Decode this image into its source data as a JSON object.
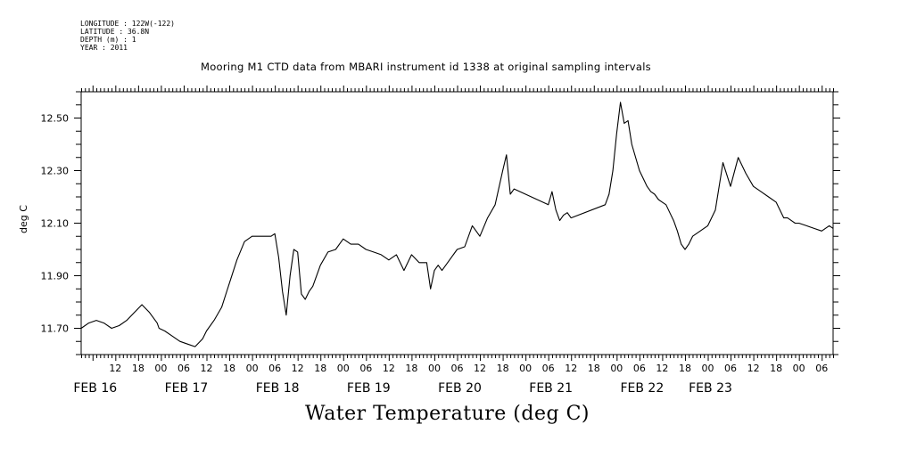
{
  "meta": {
    "longitude": "LONGITUDE : 122W(-122)",
    "latitude": "LATITUDE : 36.8N",
    "depth": "DEPTH (m) : 1",
    "year": "YEAR : 2011"
  },
  "chart_data": {
    "type": "line",
    "title": "Mooring M1 CTD data from MBARI instrument id 1338 at original sampling intervals",
    "xlabel": "Water Temperature (deg C)",
    "ylabel": "deg C",
    "ylim": [
      11.6,
      12.6
    ],
    "yticks": [
      11.7,
      11.9,
      12.1,
      12.3,
      12.5
    ],
    "ytick_labels": [
      "11.70",
      "11.90",
      "12.10",
      "12.30",
      "12.50"
    ],
    "xlim": [
      -15,
      183
    ],
    "hour_ticks": [
      {
        "t": -6,
        "label": "12"
      },
      {
        "t": 0,
        "label": "18"
      },
      {
        "t": 6,
        "label": "00"
      },
      {
        "t": 12,
        "label": "06"
      },
      {
        "t": 18,
        "label": "12"
      },
      {
        "t": 24,
        "label": "18"
      },
      {
        "t": 30,
        "label": "00"
      },
      {
        "t": 36,
        "label": "06"
      },
      {
        "t": 42,
        "label": "12"
      },
      {
        "t": 48,
        "label": "18"
      },
      {
        "t": 54,
        "label": "00"
      },
      {
        "t": 60,
        "label": "06"
      },
      {
        "t": 66,
        "label": "12"
      },
      {
        "t": 72,
        "label": "18"
      },
      {
        "t": 78,
        "label": "00"
      },
      {
        "t": 84,
        "label": "06"
      },
      {
        "t": 90,
        "label": "12"
      },
      {
        "t": 96,
        "label": "18"
      },
      {
        "t": 102,
        "label": "00"
      },
      {
        "t": 108,
        "label": "06"
      },
      {
        "t": 114,
        "label": "12"
      },
      {
        "t": 120,
        "label": "18"
      },
      {
        "t": 126,
        "label": "00"
      },
      {
        "t": 132,
        "label": "06"
      },
      {
        "t": 138,
        "label": "12"
      },
      {
        "t": 144,
        "label": "18"
      },
      {
        "t": 150,
        "label": "00"
      },
      {
        "t": 156,
        "label": "06"
      },
      {
        "t": 162,
        "label": "12"
      },
      {
        "t": 168,
        "label": "18"
      },
      {
        "t": 174,
        "label": "00"
      },
      {
        "t": 180,
        "label": "06"
      }
    ],
    "date_ticks": [
      {
        "t": -12,
        "label": "FEB 16"
      },
      {
        "t": 12,
        "label": "FEB 17"
      },
      {
        "t": 36,
        "label": "FEB 18"
      },
      {
        "t": 60,
        "label": "FEB 19"
      },
      {
        "t": 84,
        "label": "FEB 20"
      },
      {
        "t": 108,
        "label": "FEB 21"
      },
      {
        "t": 132,
        "label": "FEB 22"
      },
      {
        "t": 150,
        "label": "FEB 23"
      }
    ],
    "series": [
      {
        "name": "",
        "x": [
          -15,
          -13,
          -11,
          -9,
          -7,
          -5,
          -3,
          -1,
          1,
          3,
          5,
          5.5,
          7,
          9,
          11,
          13,
          15,
          17,
          18,
          20,
          22,
          24,
          26,
          28,
          30,
          32,
          34,
          35,
          36,
          37,
          38,
          39,
          40,
          41,
          42,
          43,
          44,
          45,
          46,
          48,
          50,
          52,
          54,
          56,
          58,
          60,
          62,
          64,
          66,
          68,
          70,
          72,
          74,
          76,
          77,
          78,
          79,
          80,
          82,
          84,
          86,
          88,
          90,
          92,
          94,
          96,
          97,
          98,
          99,
          108,
          109,
          110,
          111,
          112,
          113,
          114,
          123,
          124,
          125,
          126,
          127,
          128,
          129,
          130,
          132,
          134,
          135,
          136,
          137,
          138,
          139,
          140,
          141,
          142,
          143,
          144,
          145,
          146,
          148,
          150,
          152,
          154,
          156,
          158,
          160,
          162,
          164,
          166,
          168,
          170,
          171,
          172,
          173,
          174,
          176,
          178,
          180,
          182,
          183
        ],
        "y": [
          11.7,
          11.72,
          11.73,
          11.72,
          11.7,
          11.71,
          11.73,
          11.76,
          11.79,
          11.76,
          11.72,
          11.7,
          11.69,
          11.67,
          11.65,
          11.64,
          11.63,
          11.66,
          11.69,
          11.73,
          11.78,
          11.87,
          11.96,
          12.03,
          12.05,
          12.05,
          12.05,
          12.05,
          12.06,
          11.97,
          11.84,
          11.75,
          11.9,
          12.0,
          11.99,
          11.83,
          11.81,
          11.84,
          11.86,
          11.94,
          11.99,
          12.0,
          12.04,
          12.02,
          12.02,
          12.0,
          11.99,
          11.98,
          11.96,
          11.98,
          11.92,
          11.98,
          11.95,
          11.95,
          11.85,
          11.92,
          11.94,
          11.92,
          11.96,
          12.0,
          12.01,
          12.09,
          12.05,
          12.12,
          12.17,
          12.3,
          12.36,
          12.21,
          12.23,
          12.17,
          12.22,
          12.15,
          12.11,
          12.13,
          12.14,
          12.12,
          12.17,
          12.21,
          12.3,
          12.44,
          12.56,
          12.48,
          12.49,
          12.4,
          12.3,
          12.24,
          12.22,
          12.21,
          12.19,
          12.18,
          12.17,
          12.14,
          12.11,
          12.07,
          12.02,
          12.0,
          12.02,
          12.05,
          12.07,
          12.09,
          12.15,
          12.33,
          12.24,
          12.35,
          12.29,
          12.24,
          12.22,
          12.2,
          12.18,
          12.12,
          12.12,
          12.11,
          12.1,
          12.1,
          12.09,
          12.08,
          12.07,
          12.09,
          12.08
        ],
        "color": "#000000"
      }
    ],
    "grid": false
  }
}
